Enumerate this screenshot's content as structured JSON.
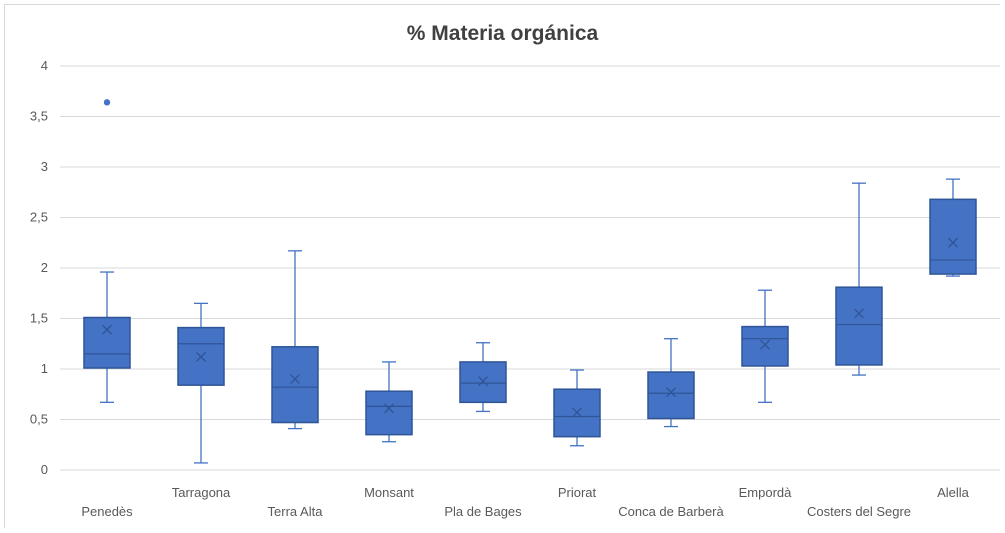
{
  "chart_data": {
    "type": "boxplot",
    "title": "% Materia orgánica",
    "xlabel": "",
    "ylabel": "",
    "ylim": [
      0,
      4
    ],
    "y_ticks": [
      "0",
      "0,5",
      "1",
      "1,5",
      "2",
      "2,5",
      "3",
      "3,5",
      "4"
    ],
    "grid": true,
    "box_color": "#4472c4",
    "box_border": "#2f5597",
    "series": [
      {
        "category": "Penedès",
        "min": 0.67,
        "q1": 1.01,
        "median": 1.15,
        "q3": 1.51,
        "max": 1.96,
        "mean": 1.39,
        "outliers": [
          3.64
        ]
      },
      {
        "category": "Tarragona",
        "min": 0.07,
        "q1": 0.84,
        "median": 1.25,
        "q3": 1.41,
        "max": 1.65,
        "mean": 1.12,
        "outliers": []
      },
      {
        "category": "Terra Alta",
        "min": 0.41,
        "q1": 0.47,
        "median": 0.82,
        "q3": 1.22,
        "max": 2.17,
        "mean": 0.9,
        "outliers": []
      },
      {
        "category": "Monsant",
        "min": 0.28,
        "q1": 0.35,
        "median": 0.63,
        "q3": 0.78,
        "max": 1.07,
        "mean": 0.61,
        "outliers": []
      },
      {
        "category": "Pla de Bages",
        "min": 0.58,
        "q1": 0.67,
        "median": 0.86,
        "q3": 1.07,
        "max": 1.26,
        "mean": 0.88,
        "outliers": []
      },
      {
        "category": "Priorat",
        "min": 0.24,
        "q1": 0.33,
        "median": 0.53,
        "q3": 0.8,
        "max": 0.99,
        "mean": 0.57,
        "outliers": []
      },
      {
        "category": "Conca de Barberà",
        "min": 0.43,
        "q1": 0.51,
        "median": 0.76,
        "q3": 0.97,
        "max": 1.3,
        "mean": 0.77,
        "outliers": []
      },
      {
        "category": "Empordà",
        "min": 0.67,
        "q1": 1.03,
        "median": 1.3,
        "q3": 1.42,
        "max": 1.78,
        "mean": 1.24,
        "outliers": []
      },
      {
        "category": "Costers del Segre",
        "min": 0.94,
        "q1": 1.04,
        "median": 1.44,
        "q3": 1.81,
        "max": 2.84,
        "mean": 1.55,
        "outliers": []
      },
      {
        "category": "Alella",
        "min": 1.92,
        "q1": 1.94,
        "median": 2.08,
        "q3": 2.68,
        "max": 2.88,
        "mean": 2.25,
        "outliers": []
      }
    ]
  }
}
